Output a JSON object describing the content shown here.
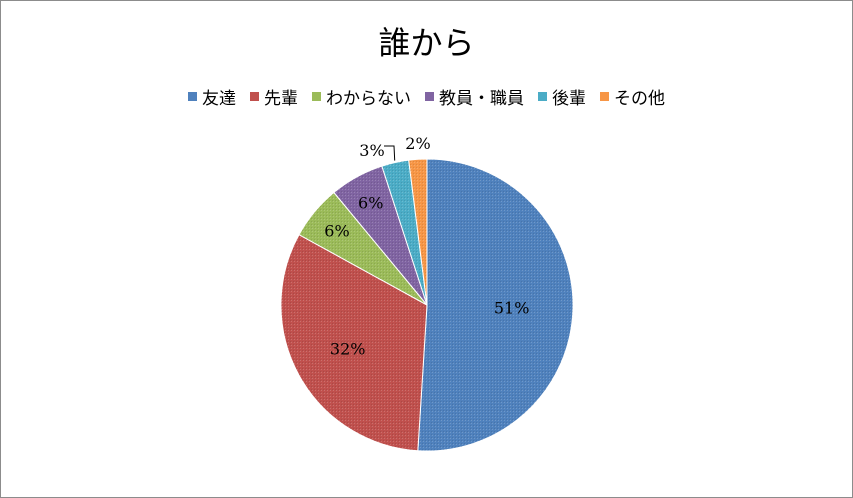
{
  "chart_data": {
    "type": "pie",
    "title": "誰から",
    "legend_position": "top",
    "series": [
      {
        "name": "友達",
        "value": 51,
        "label": "51%",
        "color": "#4F81BD"
      },
      {
        "name": "先輩",
        "value": 32,
        "label": "32%",
        "color": "#C0504D"
      },
      {
        "name": "わからない",
        "value": 6,
        "label": "6%",
        "color": "#9BBB59"
      },
      {
        "name": "教員・職員",
        "value": 6,
        "label": "6%",
        "color": "#8064A2"
      },
      {
        "name": "後輩",
        "value": 3,
        "label": "3%",
        "color": "#4BACC6"
      },
      {
        "name": "その他",
        "value": 2,
        "label": "2%",
        "color": "#F79646"
      }
    ]
  }
}
